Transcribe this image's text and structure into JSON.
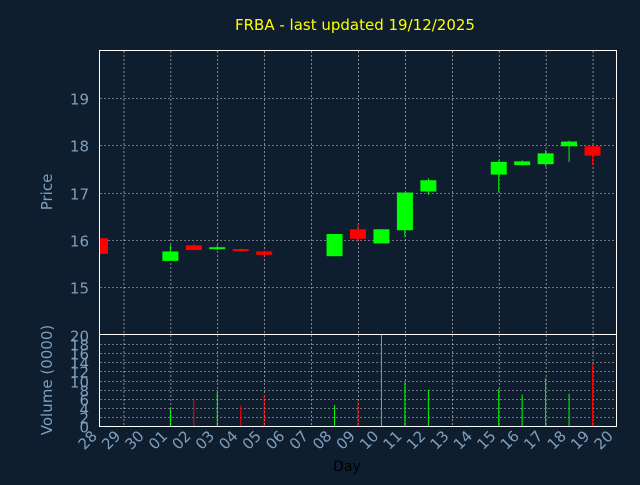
{
  "chart_data": {
    "type": "candlestick",
    "title": "FRBA - last updated 19/12/2025",
    "xlabel": "Day",
    "price_panel": {
      "ylabel": "Price",
      "ylim": [
        14.0,
        20.0
      ],
      "yticks": [
        "15",
        "16",
        "17",
        "18",
        "19"
      ]
    },
    "volume_panel": {
      "ylabel": "Volume (0000)",
      "ylim": [
        0,
        20
      ],
      "yticks": [
        "0",
        "2",
        "4",
        "6",
        "8",
        "10",
        "12",
        "14",
        "16",
        "18",
        "20"
      ]
    },
    "x_ticks": [
      "28",
      "29",
      "30",
      "01",
      "02",
      "03",
      "04",
      "05",
      "06",
      "07",
      "08",
      "09",
      "10",
      "11",
      "12",
      "13",
      "14",
      "15",
      "16",
      "17",
      "18",
      "19",
      "20"
    ],
    "grid": true,
    "colors": {
      "up": "#00ff00",
      "down": "#ff0000",
      "grid": "#ffffff",
      "axis_text": "#7f9fbf",
      "title": "#ffff00",
      "background": "#0f1e2e"
    },
    "candles": [
      {
        "day": "28",
        "open": 16.03,
        "high": 16.03,
        "low": 15.68,
        "close": 15.7,
        "volume": 0
      },
      {
        "day": "01",
        "open": 15.55,
        "high": 15.88,
        "low": 15.55,
        "close": 15.75,
        "volume": 3.8
      },
      {
        "day": "02",
        "open": 15.88,
        "high": 15.92,
        "low": 15.78,
        "close": 15.78,
        "volume": 6.0
      },
      {
        "day": "03",
        "open": 15.8,
        "high": 15.88,
        "low": 15.78,
        "close": 15.84,
        "volume": 7.4
      },
      {
        "day": "04",
        "open": 15.8,
        "high": 15.81,
        "low": 15.75,
        "close": 15.76,
        "volume": 4.5
      },
      {
        "day": "05",
        "open": 15.75,
        "high": 15.77,
        "low": 15.62,
        "close": 15.68,
        "volume": 6.8
      },
      {
        "day": "08",
        "open": 15.65,
        "high": 16.12,
        "low": 15.65,
        "close": 16.12,
        "volume": 4.6
      },
      {
        "day": "09",
        "open": 16.22,
        "high": 16.35,
        "low": 15.95,
        "close": 16.02,
        "volume": 5.3
      },
      {
        "day": "10",
        "open": 15.92,
        "high": 16.22,
        "low": 15.92,
        "close": 16.22,
        "volume": 20.0
      },
      {
        "day": "11",
        "open": 16.2,
        "high": 17.0,
        "low": 16.05,
        "close": 17.0,
        "volume": 9.6
      },
      {
        "day": "12",
        "open": 17.02,
        "high": 17.3,
        "low": 16.95,
        "close": 17.26,
        "volume": 8.0
      },
      {
        "day": "15",
        "open": 17.38,
        "high": 17.68,
        "low": 17.0,
        "close": 17.65,
        "volume": 8.1
      },
      {
        "day": "16",
        "open": 17.58,
        "high": 17.68,
        "low": 17.57,
        "close": 17.66,
        "volume": 6.9
      },
      {
        "day": "17",
        "open": 17.6,
        "high": 17.9,
        "low": 17.55,
        "close": 17.83,
        "volume": 10.5
      },
      {
        "day": "18",
        "open": 17.98,
        "high": 18.1,
        "low": 17.65,
        "close": 18.08,
        "volume": 7.1
      },
      {
        "day": "19",
        "open": 17.98,
        "high": 18.0,
        "low": 17.58,
        "close": 17.78,
        "volume": 13.5
      }
    ]
  }
}
